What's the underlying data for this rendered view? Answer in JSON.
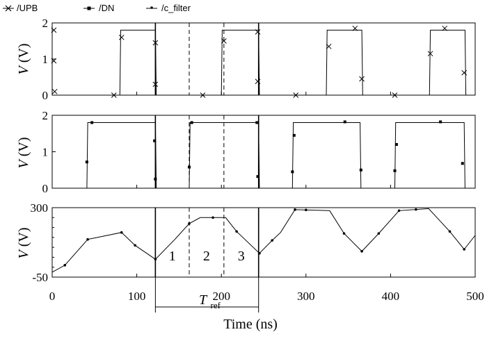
{
  "legend": {
    "items": [
      {
        "label": "/UPB",
        "marker": "x"
      },
      {
        "label": "/DN",
        "marker": "square"
      },
      {
        "label": "/c_filter",
        "marker": "dot"
      }
    ]
  },
  "chart_data": [
    {
      "type": "line",
      "panel": "top",
      "series_name": "/UPB",
      "ylabel_var": "V",
      "ylabel_unit": "(V)",
      "ylim": [
        0,
        2
      ],
      "yticks": [
        "0",
        "1",
        "2"
      ],
      "xlim": [
        0,
        500
      ],
      "steps": [
        [
          0,
          0
        ],
        [
          80,
          0
        ],
        [
          81,
          1.8
        ],
        [
          122,
          1.8
        ],
        [
          123,
          0
        ],
        [
          200,
          0
        ],
        [
          201,
          1.8
        ],
        [
          244,
          1.8
        ],
        [
          245,
          0
        ],
        [
          324,
          0
        ],
        [
          325,
          1.8
        ],
        [
          366,
          1.8
        ],
        [
          367,
          0
        ],
        [
          446,
          0
        ],
        [
          447,
          1.8
        ],
        [
          488,
          1.8
        ],
        [
          489,
          0
        ],
        [
          500,
          0
        ]
      ],
      "markers": [
        [
          2,
          1.8
        ],
        [
          2,
          0.95
        ],
        [
          3,
          0.1
        ],
        [
          73,
          0.0
        ],
        [
          82,
          1.6
        ],
        [
          122,
          1.45
        ],
        [
          122,
          0.3
        ],
        [
          178,
          0.0
        ],
        [
          203,
          1.5
        ],
        [
          243,
          1.75
        ],
        [
          243,
          0.38
        ],
        [
          288,
          0.0
        ],
        [
          327,
          1.35
        ],
        [
          358,
          1.85
        ],
        [
          366,
          0.45
        ],
        [
          405,
          0.0
        ],
        [
          447,
          1.15
        ],
        [
          464,
          1.85
        ],
        [
          487,
          0.62
        ]
      ]
    },
    {
      "type": "line",
      "panel": "middle",
      "series_name": "/DN",
      "ylabel_var": "V",
      "ylabel_unit": "(V)",
      "ylim": [
        0,
        2
      ],
      "yticks": [
        "0",
        "1",
        "2"
      ],
      "xlim": [
        0,
        500
      ],
      "steps": [
        [
          0,
          0
        ],
        [
          41,
          0
        ],
        [
          42,
          1.8
        ],
        [
          122,
          1.8
        ],
        [
          123,
          0
        ],
        [
          162,
          0
        ],
        [
          163,
          1.8
        ],
        [
          244,
          1.8
        ],
        [
          245,
          0
        ],
        [
          284,
          0
        ],
        [
          285,
          1.8
        ],
        [
          364,
          1.8
        ],
        [
          365,
          0
        ],
        [
          405,
          0
        ],
        [
          406,
          1.8
        ],
        [
          487,
          1.8
        ],
        [
          488,
          0
        ],
        [
          500,
          0
        ]
      ],
      "markers": [
        [
          41,
          0.72
        ],
        [
          47,
          1.8
        ],
        [
          121,
          1.3
        ],
        [
          122,
          0.25
        ],
        [
          162,
          0.58
        ],
        [
          165,
          1.8
        ],
        [
          242,
          1.8
        ],
        [
          243,
          0.32
        ],
        [
          284,
          0.45
        ],
        [
          286,
          1.45
        ],
        [
          346,
          1.82
        ],
        [
          365,
          0.5
        ],
        [
          405,
          0.48
        ],
        [
          407,
          1.2
        ],
        [
          459,
          1.82
        ],
        [
          485,
          0.68
        ]
      ]
    },
    {
      "type": "line",
      "panel": "bottom",
      "series_name": "/c_filter",
      "ylabel_var": "V",
      "ylabel_unit": "(V)",
      "ylim": [
        -50,
        300
      ],
      "yticks": [
        "-50",
        "300"
      ],
      "xlim": [
        0,
        500
      ],
      "xticks": [
        "0",
        "100",
        "200",
        "300",
        "400",
        "500"
      ],
      "xlabel": "Time (ns)",
      "x": [
        0,
        15,
        42,
        82,
        98,
        122,
        145,
        162,
        175,
        205,
        218,
        245,
        260,
        270,
        287,
        328,
        345,
        366,
        386,
        410,
        445,
        470,
        487,
        500
      ],
      "y": [
        -25,
        10,
        140,
        175,
        110,
        40,
        140,
        220,
        250,
        250,
        180,
        70,
        135,
        175,
        290,
        285,
        170,
        80,
        170,
        285,
        295,
        180,
        90,
        160
      ],
      "marker_x": [
        15,
        42,
        82,
        98,
        122,
        162,
        190,
        218,
        245,
        260,
        287,
        300,
        345,
        366,
        386,
        410,
        430,
        470,
        487
      ],
      "region_labels": [
        "1",
        "2",
        "3"
      ],
      "tref_label": "T",
      "tref_sub": "ref"
    }
  ]
}
